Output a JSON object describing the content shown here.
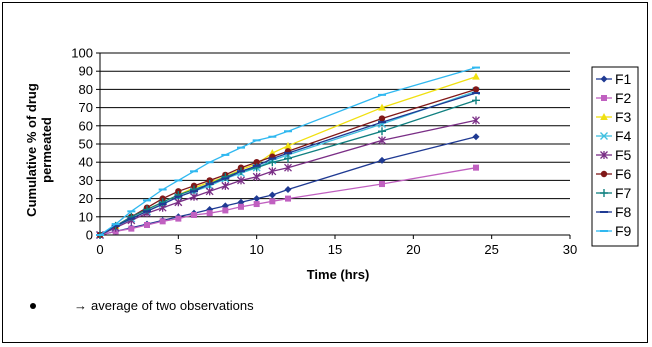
{
  "chart_data": {
    "type": "line",
    "xlabel": "Time (hrs)",
    "ylabel_lines": [
      "Cumulative % of drug",
      "permeated"
    ],
    "xlim": [
      0,
      30
    ],
    "ylim": [
      0,
      100
    ],
    "x_ticks": [
      0,
      5,
      10,
      15,
      20,
      25,
      30
    ],
    "y_ticks": [
      0,
      10,
      20,
      30,
      40,
      50,
      60,
      70,
      80,
      90,
      100
    ],
    "grid": "horizontal",
    "legend_position": "right",
    "x": [
      0,
      1,
      2,
      3,
      4,
      5,
      6,
      7,
      8,
      9,
      10,
      11,
      12,
      18,
      24
    ],
    "series": [
      {
        "name": "F1",
        "color": "#1f3a93",
        "marker": "diamond",
        "values": [
          0,
          2,
          4,
          6,
          8,
          10,
          12,
          14,
          16,
          18,
          20,
          22,
          25,
          41,
          54
        ]
      },
      {
        "name": "F2",
        "color": "#c060c0",
        "marker": "square",
        "values": [
          0,
          2,
          3.5,
          5.5,
          7.5,
          9,
          11,
          12,
          13.5,
          15.5,
          17,
          18.5,
          20,
          28,
          37
        ]
      },
      {
        "name": "F3",
        "color": "#f0e010",
        "marker": "triangle",
        "values": [
          0,
          5,
          10,
          14,
          18,
          22,
          26,
          29,
          32,
          36,
          39,
          45,
          49,
          70,
          87
        ]
      },
      {
        "name": "F4",
        "color": "#40c0e0",
        "marker": "x",
        "values": [
          0,
          4,
          9,
          13,
          17,
          21,
          24,
          27,
          31,
          34,
          37,
          41,
          44,
          61,
          79
        ]
      },
      {
        "name": "F5",
        "color": "#7a2e86",
        "marker": "star",
        "values": [
          0,
          4,
          8,
          12,
          15,
          18,
          21,
          24,
          27,
          30,
          32,
          35,
          37,
          52,
          63
        ]
      },
      {
        "name": "F6",
        "color": "#801818",
        "marker": "circle",
        "values": [
          0,
          5,
          10,
          15,
          20,
          24,
          27,
          30,
          33,
          37,
          40,
          43,
          46,
          64,
          80
        ]
      },
      {
        "name": "F7",
        "color": "#108080",
        "marker": "plus",
        "values": [
          0,
          5,
          10,
          14,
          18,
          22,
          25,
          28,
          32,
          35,
          37,
          40,
          42,
          57,
          74
        ]
      },
      {
        "name": "F8",
        "color": "#1f3a93",
        "marker": "dash",
        "values": [
          0,
          5,
          9,
          13,
          17,
          21,
          24,
          28,
          31,
          35,
          38,
          42,
          45,
          62,
          78
        ]
      },
      {
        "name": "F9",
        "color": "#30b8f0",
        "marker": "dash",
        "values": [
          0,
          6,
          13,
          19,
          25,
          30,
          35,
          40,
          44,
          48,
          52,
          54,
          57,
          77,
          92
        ]
      }
    ]
  },
  "note": {
    "arrow": "→",
    "text": "average of two observations"
  }
}
